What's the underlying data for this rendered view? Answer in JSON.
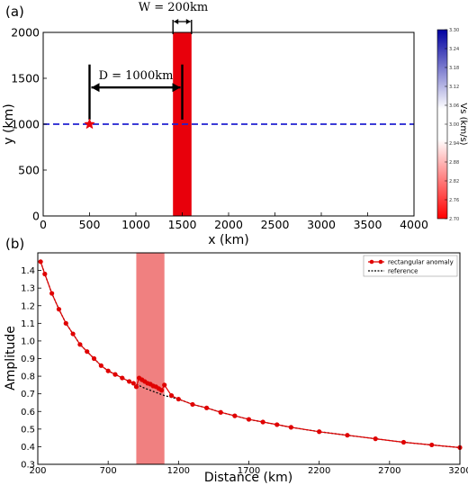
{
  "chart_data": [
    {
      "type": "heatmap",
      "panel_label": "(a)",
      "xlabel": "x (km)",
      "ylabel": "y (km)",
      "xlim": [
        0,
        4000
      ],
      "ylim": [
        0,
        2000
      ],
      "xticks": [
        0,
        500,
        1000,
        1500,
        2000,
        2500,
        3000,
        3500,
        4000
      ],
      "yticks": [
        0,
        500,
        1000,
        1500,
        2000
      ],
      "anomaly": {
        "x_start": 1400,
        "x_end": 1600,
        "y_start": 0,
        "y_end": 2000,
        "vs": 2.7,
        "color": "#e8000b"
      },
      "source": {
        "x": 500,
        "y": 1000,
        "marker": "star",
        "color": "#e8000b"
      },
      "profile_line": {
        "y": 1000,
        "x_start": 0,
        "x_end": 4000,
        "style": "dashed",
        "color": "#2020d0"
      },
      "annotations": {
        "width_label": "W = 200km",
        "distance_label": "D = 1000km"
      },
      "colorbar": {
        "label": "Vs (km/s)",
        "ticks": [
          "3.30",
          "3.24",
          "3.18",
          "3.12",
          "3.06",
          "3.00",
          "2.94",
          "2.88",
          "2.82",
          "2.76",
          "2.70"
        ],
        "min": 2.7,
        "max": 3.3,
        "colors": {
          "low": "#ff0000",
          "mid": "#ffffff",
          "high": "#0000a0"
        }
      }
    },
    {
      "type": "line",
      "panel_label": "(b)",
      "xlabel": "Distance (km)",
      "ylabel": "Amplitude",
      "xlim": [
        200,
        3200
      ],
      "ylim": [
        0.3,
        1.5
      ],
      "xticks": [
        200,
        700,
        1200,
        1700,
        2200,
        2700,
        3200
      ],
      "yticks": [
        "0.3",
        "0.4",
        "0.5",
        "0.6",
        "0.7",
        "0.8",
        "0.9",
        "1.0",
        "1.1",
        "1.2",
        "1.3",
        "1.4"
      ],
      "shaded_region": {
        "x_start": 900,
        "x_end": 1100,
        "color": "#f08080"
      },
      "legend_position": "top-right",
      "series": [
        {
          "name": "rectangular anomaly",
          "style": "line-with-circles",
          "color": "#e00000",
          "x": [
            220,
            250,
            300,
            350,
            400,
            450,
            500,
            550,
            600,
            650,
            700,
            750,
            800,
            850,
            880,
            900,
            920,
            940,
            960,
            980,
            1000,
            1020,
            1040,
            1060,
            1080,
            1100,
            1150,
            1200,
            1300,
            1400,
            1500,
            1600,
            1700,
            1800,
            1900,
            2000,
            2200,
            2400,
            2600,
            2800,
            3000,
            3200
          ],
          "y": [
            1.45,
            1.38,
            1.27,
            1.18,
            1.1,
            1.04,
            0.98,
            0.94,
            0.9,
            0.86,
            0.83,
            0.81,
            0.79,
            0.77,
            0.76,
            0.74,
            0.79,
            0.78,
            0.77,
            0.76,
            0.755,
            0.745,
            0.74,
            0.73,
            0.72,
            0.75,
            0.69,
            0.67,
            0.64,
            0.62,
            0.595,
            0.575,
            0.555,
            0.54,
            0.525,
            0.51,
            0.485,
            0.465,
            0.445,
            0.425,
            0.41,
            0.395
          ]
        },
        {
          "name": "reference",
          "style": "dotted",
          "color": "#000000",
          "x": [
            220,
            250,
            300,
            350,
            400,
            450,
            500,
            550,
            600,
            650,
            700,
            750,
            800,
            850,
            900,
            950,
            1000,
            1050,
            1100,
            1150,
            1200,
            1300,
            1400,
            1500,
            1600,
            1700,
            1800,
            1900,
            2000,
            2200,
            2400,
            2600,
            2800,
            3000,
            3200
          ],
          "y": [
            1.45,
            1.38,
            1.27,
            1.18,
            1.1,
            1.04,
            0.98,
            0.94,
            0.9,
            0.86,
            0.83,
            0.81,
            0.79,
            0.77,
            0.755,
            0.735,
            0.72,
            0.705,
            0.69,
            0.68,
            0.67,
            0.64,
            0.62,
            0.595,
            0.575,
            0.555,
            0.54,
            0.525,
            0.51,
            0.485,
            0.465,
            0.445,
            0.425,
            0.41,
            0.395
          ]
        }
      ]
    }
  ]
}
